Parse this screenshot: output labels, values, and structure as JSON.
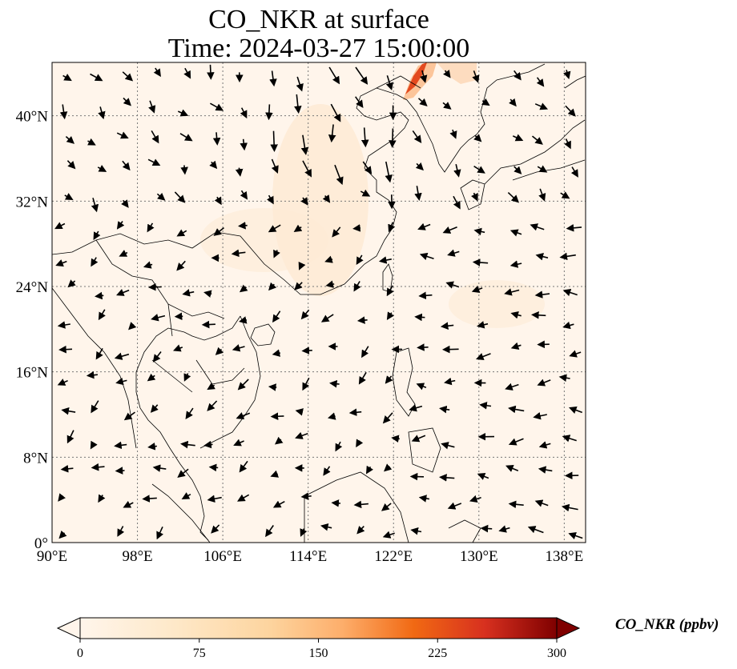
{
  "title": {
    "line1": "CO_NKR at surface",
    "line2": "Time: 2024-03-27 15:00:00"
  },
  "map": {
    "lon_range": [
      90,
      140
    ],
    "lat_range": [
      0,
      45
    ],
    "x_ticks": [
      "90°E",
      "98°E",
      "106°E",
      "114°E",
      "122°E",
      "130°E",
      "138°E"
    ],
    "y_ticks": [
      "0°",
      "8°N",
      "16°N",
      "24°N",
      "32°N",
      "40°N"
    ],
    "grid": true,
    "background_color": "#fff5eb",
    "coastline_color": "#000000",
    "vector_color": "#000000",
    "plume_color": "#e34a1f"
  },
  "colorbar": {
    "label": "CO_NKR (ppbv)",
    "ticks": [
      "0",
      "75",
      "150",
      "225",
      "300"
    ],
    "range": [
      0,
      300
    ],
    "colormap": "OrRd",
    "colors": [
      "#fff5eb",
      "#fdd49e",
      "#fdae6b",
      "#f16913",
      "#d7301f",
      "#7f0000"
    ],
    "extend": "both"
  }
}
